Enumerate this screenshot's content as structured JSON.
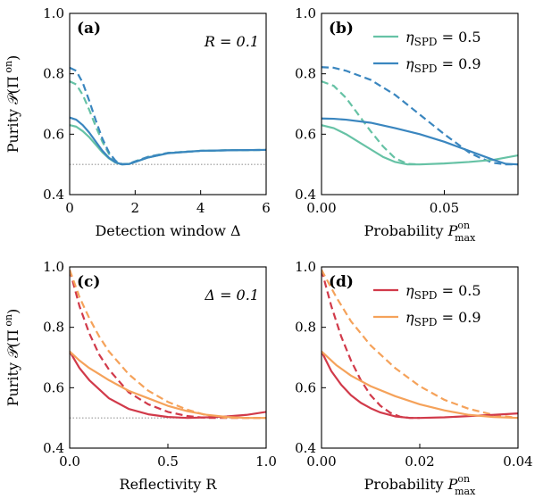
{
  "chart_data": [
    {
      "panel": "(a)",
      "type": "line",
      "annotation": "R = 0.1",
      "xlabel": "Detection window Δ",
      "ylabel": "Purity 𝒫(Π on)",
      "xlim": [
        0,
        6
      ],
      "ylim": [
        0.4,
        1.0
      ],
      "xticks": [
        0,
        2,
        4,
        6
      ],
      "xtick_labels": [
        "0",
        "2",
        "4",
        "6"
      ],
      "yticks": [
        0.4,
        0.6,
        0.8,
        1.0
      ],
      "ytick_labels": [
        "0.4",
        "0.6",
        "0.8",
        "1.0"
      ],
      "reference_line": {
        "y": 0.5,
        "style": "dotted",
        "color": "#999999"
      },
      "series": [
        {
          "color": "#66c2a5",
          "dash": "dashed",
          "x": [
            0,
            0.2,
            0.4,
            0.6,
            0.8,
            1.0,
            1.2,
            1.4,
            1.6,
            1.8,
            2.0,
            2.4,
            3.0,
            4.0,
            5.0,
            6.0
          ],
          "y": [
            0.775,
            0.765,
            0.73,
            0.68,
            0.625,
            0.575,
            0.535,
            0.51,
            0.501,
            0.502,
            0.51,
            0.525,
            0.538,
            0.545,
            0.547,
            0.548
          ]
        },
        {
          "color": "#3a86bf",
          "dash": "dashed",
          "x": [
            0,
            0.2,
            0.4,
            0.6,
            0.8,
            1.0,
            1.2,
            1.4,
            1.6,
            1.8,
            2.0,
            2.4,
            3.0,
            4.0,
            5.0,
            6.0
          ],
          "y": [
            0.82,
            0.81,
            0.77,
            0.71,
            0.645,
            0.585,
            0.54,
            0.512,
            0.501,
            0.502,
            0.51,
            0.525,
            0.538,
            0.545,
            0.547,
            0.548
          ]
        },
        {
          "color": "#66c2a5",
          "dash": "solid",
          "x": [
            0,
            0.2,
            0.4,
            0.6,
            0.8,
            1.0,
            1.2,
            1.4,
            1.6,
            1.8,
            2.0,
            2.4,
            3.0,
            4.0,
            5.0,
            6.0
          ],
          "y": [
            0.63,
            0.625,
            0.61,
            0.59,
            0.565,
            0.54,
            0.52,
            0.506,
            0.5,
            0.501,
            0.508,
            0.523,
            0.537,
            0.545,
            0.547,
            0.548
          ]
        },
        {
          "color": "#3a86bf",
          "dash": "solid",
          "x": [
            0,
            0.2,
            0.4,
            0.6,
            0.8,
            1.0,
            1.2,
            1.4,
            1.6,
            1.8,
            2.0,
            2.4,
            3.0,
            4.0,
            5.0,
            6.0
          ],
          "y": [
            0.655,
            0.648,
            0.63,
            0.605,
            0.575,
            0.545,
            0.522,
            0.507,
            0.5,
            0.501,
            0.508,
            0.523,
            0.537,
            0.545,
            0.547,
            0.548
          ]
        }
      ]
    },
    {
      "panel": "(b)",
      "type": "line",
      "xlabel": "Probability P on max",
      "ylabel": "",
      "xlim": [
        0,
        0.08
      ],
      "ylim": [
        0.4,
        1.0
      ],
      "xticks": [
        0,
        0.05
      ],
      "xtick_labels": [
        "0.00",
        "0.05"
      ],
      "yticks": [
        0.4,
        0.6,
        0.8,
        1.0
      ],
      "ytick_labels": [
        "0.4",
        "0.6",
        "0.8",
        "1.0"
      ],
      "legend": {
        "placement": "top-right",
        "entries": [
          {
            "label": "ηSPD = 0.5",
            "color": "#66c2a5"
          },
          {
            "label": "ηSPD = 0.9",
            "color": "#3a86bf"
          }
        ]
      },
      "series": [
        {
          "color": "#66c2a5",
          "dash": "dashed",
          "x": [
            0,
            0.005,
            0.01,
            0.015,
            0.02,
            0.025,
            0.03,
            0.035,
            0.04
          ],
          "y": [
            0.775,
            0.76,
            0.72,
            0.665,
            0.61,
            0.56,
            0.52,
            0.502,
            0.5
          ]
        },
        {
          "color": "#3a86bf",
          "dash": "dashed",
          "x": [
            0,
            0.005,
            0.01,
            0.02,
            0.03,
            0.04,
            0.05,
            0.06,
            0.065,
            0.07,
            0.075,
            0.08
          ],
          "y": [
            0.822,
            0.82,
            0.81,
            0.78,
            0.73,
            0.665,
            0.6,
            0.54,
            0.52,
            0.505,
            0.5,
            0.5
          ]
        },
        {
          "color": "#66c2a5",
          "dash": "solid",
          "x": [
            0,
            0.005,
            0.01,
            0.015,
            0.02,
            0.025,
            0.03,
            0.035,
            0.04,
            0.05,
            0.06,
            0.07,
            0.08
          ],
          "y": [
            0.63,
            0.62,
            0.6,
            0.575,
            0.55,
            0.525,
            0.508,
            0.5,
            0.5,
            0.503,
            0.508,
            0.515,
            0.53
          ]
        },
        {
          "color": "#3a86bf",
          "dash": "solid",
          "x": [
            0,
            0.005,
            0.01,
            0.02,
            0.03,
            0.04,
            0.05,
            0.06,
            0.07,
            0.075,
            0.08
          ],
          "y": [
            0.652,
            0.651,
            0.648,
            0.638,
            0.62,
            0.6,
            0.575,
            0.545,
            0.515,
            0.502,
            0.5
          ]
        }
      ]
    },
    {
      "panel": "(c)",
      "type": "line",
      "annotation": "Δ = 0.1",
      "xlabel": "Reflectivity R",
      "ylabel": "Purity 𝒫(Π on)",
      "xlim": [
        0,
        1
      ],
      "ylim": [
        0.4,
        1.0
      ],
      "xticks": [
        0,
        0.5,
        1.0
      ],
      "xtick_labels": [
        "0.0",
        "0.5",
        "1.0"
      ],
      "yticks": [
        0.4,
        0.6,
        0.8,
        1.0
      ],
      "ytick_labels": [
        "0.4",
        "0.6",
        "0.8",
        "1.0"
      ],
      "reference_line": {
        "y": 0.5,
        "style": "dotted",
        "color": "#999999"
      },
      "series": [
        {
          "color": "#d13a4a",
          "dash": "dashed",
          "x": [
            0,
            0.05,
            0.1,
            0.15,
            0.2,
            0.3,
            0.4,
            0.5,
            0.6,
            0.7,
            0.8,
            0.9,
            1.0
          ],
          "y": [
            0.99,
            0.87,
            0.78,
            0.71,
            0.66,
            0.585,
            0.545,
            0.52,
            0.506,
            0.5,
            0.5,
            0.5,
            0.5
          ]
        },
        {
          "color": "#f5a25a",
          "dash": "dashed",
          "x": [
            0,
            0.05,
            0.1,
            0.15,
            0.2,
            0.3,
            0.4,
            0.5,
            0.6,
            0.7,
            0.8,
            0.9,
            1.0
          ],
          "y": [
            0.99,
            0.9,
            0.83,
            0.77,
            0.72,
            0.645,
            0.59,
            0.553,
            0.527,
            0.508,
            0.5,
            0.5,
            0.5
          ]
        },
        {
          "color": "#d13a4a",
          "dash": "solid",
          "x": [
            0,
            0.05,
            0.1,
            0.15,
            0.2,
            0.3,
            0.4,
            0.5,
            0.6,
            0.7,
            0.8,
            0.9,
            1.0
          ],
          "y": [
            0.72,
            0.665,
            0.625,
            0.595,
            0.565,
            0.53,
            0.512,
            0.503,
            0.5,
            0.502,
            0.505,
            0.51,
            0.52
          ]
        },
        {
          "color": "#f5a25a",
          "dash": "solid",
          "x": [
            0,
            0.05,
            0.1,
            0.15,
            0.2,
            0.3,
            0.4,
            0.5,
            0.6,
            0.7,
            0.8,
            0.9,
            1.0
          ],
          "y": [
            0.72,
            0.69,
            0.665,
            0.645,
            0.625,
            0.59,
            0.565,
            0.54,
            0.522,
            0.51,
            0.503,
            0.5,
            0.5
          ]
        }
      ]
    },
    {
      "panel": "(d)",
      "type": "line",
      "xlabel": "Probability P on max",
      "ylabel": "",
      "xlim": [
        0,
        0.04
      ],
      "ylim": [
        0.4,
        1.0
      ],
      "xticks": [
        0,
        0.02,
        0.04
      ],
      "xtick_labels": [
        "0.00",
        "0.02",
        "0.04"
      ],
      "yticks": [
        0.4,
        0.6,
        0.8,
        1.0
      ],
      "ytick_labels": [
        "0.4",
        "0.6",
        "0.8",
        "1.0"
      ],
      "legend": {
        "placement": "top-right",
        "entries": [
          {
            "label": "ηSPD = 0.5",
            "color": "#d13a4a"
          },
          {
            "label": "ηSPD = 0.9",
            "color": "#f5a25a"
          }
        ]
      },
      "series": [
        {
          "color": "#d13a4a",
          "dash": "dashed",
          "x": [
            0,
            0.002,
            0.004,
            0.006,
            0.008,
            0.01,
            0.012,
            0.014,
            0.016,
            0.018,
            0.02
          ],
          "y": [
            0.99,
            0.87,
            0.77,
            0.69,
            0.625,
            0.575,
            0.54,
            0.517,
            0.504,
            0.5,
            0.5
          ]
        },
        {
          "color": "#f5a25a",
          "dash": "dashed",
          "x": [
            0,
            0.003,
            0.006,
            0.01,
            0.015,
            0.02,
            0.025,
            0.03,
            0.035,
            0.04
          ],
          "y": [
            0.99,
            0.9,
            0.82,
            0.74,
            0.665,
            0.605,
            0.56,
            0.53,
            0.51,
            0.5
          ]
        },
        {
          "color": "#d13a4a",
          "dash": "solid",
          "x": [
            0,
            0.002,
            0.004,
            0.006,
            0.008,
            0.01,
            0.012,
            0.015,
            0.018,
            0.02,
            0.025,
            0.03,
            0.035,
            0.04
          ],
          "y": [
            0.72,
            0.655,
            0.61,
            0.575,
            0.55,
            0.532,
            0.518,
            0.505,
            0.5,
            0.5,
            0.502,
            0.506,
            0.51,
            0.515
          ]
        },
        {
          "color": "#f5a25a",
          "dash": "solid",
          "x": [
            0,
            0.003,
            0.006,
            0.01,
            0.015,
            0.02,
            0.025,
            0.03,
            0.035,
            0.04
          ],
          "y": [
            0.72,
            0.675,
            0.64,
            0.605,
            0.572,
            0.545,
            0.525,
            0.51,
            0.503,
            0.5
          ]
        }
      ]
    }
  ]
}
